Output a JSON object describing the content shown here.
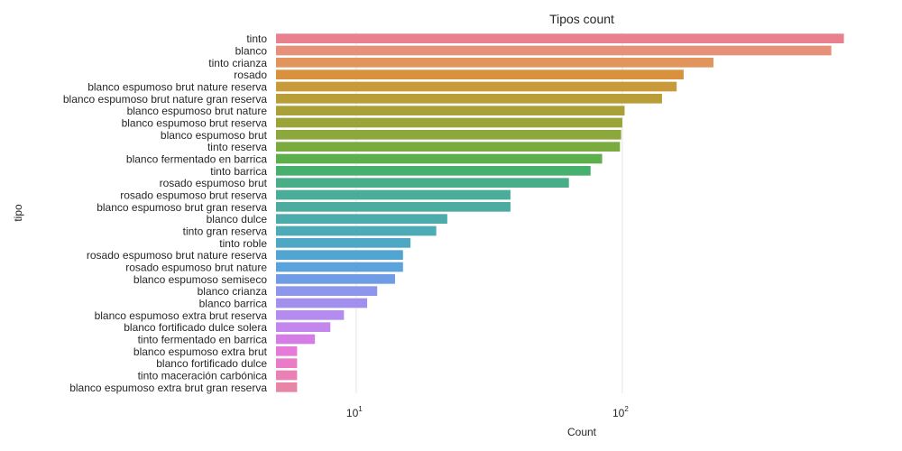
{
  "chart_data": {
    "type": "bar",
    "orientation": "horizontal",
    "title": "Tipos count",
    "xlabel": "Count",
    "ylabel": "tipo",
    "xscale": "log",
    "xlim": [
      5,
      1000
    ],
    "xticks": [
      {
        "value": 10,
        "base": "10",
        "exp": "1"
      },
      {
        "value": 100,
        "base": "10",
        "exp": "2"
      }
    ],
    "grid": true,
    "categories": [
      "tinto",
      "blanco",
      "tinto crianza",
      "rosado",
      "blanco espumoso brut nature reserva",
      "blanco espumoso brut nature gran reserva",
      "blanco espumoso brut nature",
      "blanco espumoso brut reserva",
      "blanco espumoso brut",
      "tinto reserva",
      "blanco fermentado en barrica",
      "tinto barrica",
      "rosado espumoso brut",
      "rosado espumoso brut reserva",
      "blanco espumoso brut gran reserva",
      "blanco dulce",
      "tinto gran reserva",
      "tinto roble",
      "rosado espumoso brut nature reserva",
      "rosado espumoso brut nature",
      "blanco espumoso semiseco",
      "blanco crianza",
      "blanco barrica",
      "blanco espumoso extra brut reserva",
      "blanco fortificado dulce solera",
      "tinto fermentado en barrica",
      "blanco espumoso extra brut",
      "blanco fortificado dulce",
      "tinto maceración carbónica",
      "blanco espumoso extra brut gran reserva"
    ],
    "values": [
      680,
      610,
      220,
      170,
      160,
      141,
      102,
      100,
      99,
      98,
      84,
      76,
      63,
      38,
      38,
      22,
      20,
      16,
      15,
      15,
      14,
      12,
      11,
      9,
      8,
      7,
      6,
      6,
      6,
      6
    ],
    "colors": [
      "#e8818d",
      "#e6907a",
      "#e1955c",
      "#d9913d",
      "#c99a38",
      "#b99d37",
      "#a9a037",
      "#9aa438",
      "#8ca73b",
      "#7aab3f",
      "#5bb04c",
      "#48b06f",
      "#49ae87",
      "#4aad97",
      "#4bac9f",
      "#4cabab",
      "#4daab7",
      "#4fa8c3",
      "#52a5d1",
      "#5aa3dd",
      "#6f9ce4",
      "#8d96ec",
      "#a38fee",
      "#b48cf0",
      "#c386ed",
      "#d67ce6",
      "#e679d9",
      "#ea7cc7",
      "#eb80b6",
      "#e884a6"
    ]
  }
}
